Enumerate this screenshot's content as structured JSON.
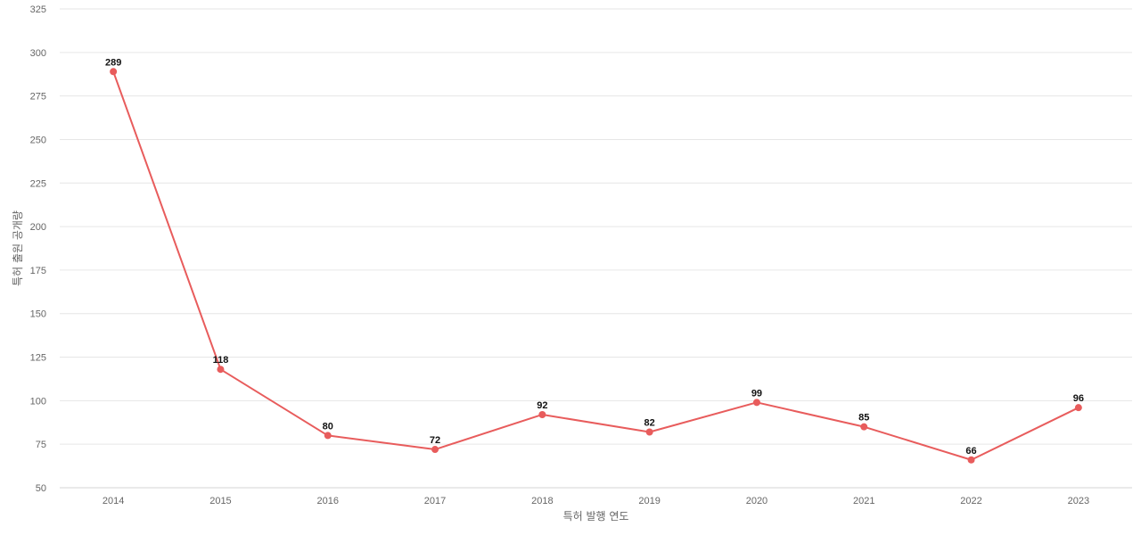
{
  "chart_data": {
    "type": "line",
    "title": "",
    "xlabel": "특허 발행 연도",
    "ylabel": "특허 출원 공개량",
    "categories": [
      "2014",
      "2015",
      "2016",
      "2017",
      "2018",
      "2019",
      "2020",
      "2021",
      "2022",
      "2023"
    ],
    "series": [
      {
        "values": [
          289,
          118,
          80,
          72,
          92,
          82,
          99,
          85,
          66,
          96
        ],
        "color": "#e85c5c"
      }
    ],
    "ylim": [
      50,
      325
    ],
    "yticks": [
      50,
      75,
      100,
      125,
      150,
      175,
      200,
      225,
      250,
      275,
      300,
      325
    ],
    "grid": true,
    "legend": "none",
    "data_labels": true
  }
}
